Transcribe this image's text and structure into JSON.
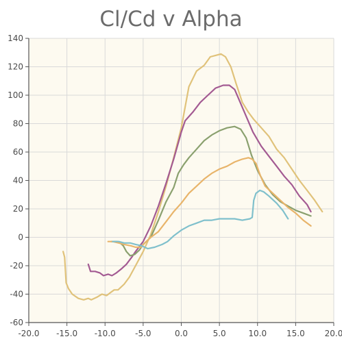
{
  "chart_data": {
    "type": "line",
    "title": "Cl/Cd v Alpha",
    "xlabel": "",
    "ylabel": "",
    "xlim": [
      -20,
      20
    ],
    "ylim": [
      -60,
      140
    ],
    "x_ticks": [
      "-20.0",
      "-15.0",
      "-10.0",
      "-5.0",
      "0.0",
      "5.0",
      "10.0",
      "15.0",
      "20.0"
    ],
    "y_ticks": [
      "140",
      "120",
      "100",
      "80",
      "60",
      "40",
      "20",
      "0",
      "-20",
      "-40",
      "-60"
    ],
    "grid": true,
    "legend": "none",
    "colors": {
      "plot_background": "#fdfaf0",
      "grid": "#d9d9d9",
      "axis": "#555555",
      "title": "#6b6b6b"
    },
    "series": [
      {
        "color": "#e0c27a",
        "points": [
          [
            -15.5,
            -10
          ],
          [
            -15.3,
            -14
          ],
          [
            -15.1,
            -32
          ],
          [
            -14.8,
            -36
          ],
          [
            -14.3,
            -40
          ],
          [
            -13.5,
            -43
          ],
          [
            -12.8,
            -44
          ],
          [
            -12.2,
            -43
          ],
          [
            -11.8,
            -44
          ],
          [
            -11.0,
            -42
          ],
          [
            -10.4,
            -40
          ],
          [
            -9.8,
            -41
          ],
          [
            -9.3,
            -39
          ],
          [
            -8.8,
            -37
          ],
          [
            -8.3,
            -37
          ],
          [
            -7.5,
            -33
          ],
          [
            -6.8,
            -28
          ],
          [
            -6.0,
            -20
          ],
          [
            -5.0,
            -10
          ],
          [
            -4.0,
            2
          ],
          [
            -3.0,
            18
          ],
          [
            -2.0,
            36
          ],
          [
            -1.0,
            56
          ],
          [
            0.0,
            77
          ],
          [
            1.0,
            106
          ],
          [
            2.0,
            117
          ],
          [
            3.0,
            121
          ],
          [
            3.8,
            127
          ],
          [
            4.5,
            128
          ],
          [
            5.2,
            129
          ],
          [
            5.8,
            127
          ],
          [
            6.5,
            120
          ],
          [
            7.2,
            108
          ],
          [
            8.0,
            95
          ],
          [
            8.8,
            88
          ],
          [
            9.5,
            83
          ],
          [
            10.5,
            77
          ],
          [
            11.5,
            71
          ],
          [
            12.5,
            62
          ],
          [
            13.5,
            56
          ],
          [
            14.5,
            48
          ],
          [
            15.5,
            40
          ],
          [
            16.5,
            33
          ],
          [
            17.5,
            26
          ],
          [
            18.5,
            18
          ]
        ]
      },
      {
        "color": "#a35a92",
        "points": [
          [
            -12.2,
            -19
          ],
          [
            -11.9,
            -24
          ],
          [
            -11.3,
            -24
          ],
          [
            -10.7,
            -25
          ],
          [
            -10.2,
            -27
          ],
          [
            -9.6,
            -26
          ],
          [
            -9.1,
            -27
          ],
          [
            -8.5,
            -25
          ],
          [
            -7.8,
            -22
          ],
          [
            -7.2,
            -19
          ],
          [
            -6.5,
            -14
          ],
          [
            -6.0,
            -10
          ],
          [
            -5.0,
            -3
          ],
          [
            -4.0,
            8
          ],
          [
            -3.0,
            22
          ],
          [
            -2.0,
            38
          ],
          [
            -1.0,
            55
          ],
          [
            0.0,
            74
          ],
          [
            0.5,
            82
          ],
          [
            1.5,
            88
          ],
          [
            2.5,
            95
          ],
          [
            3.5,
            100
          ],
          [
            4.5,
            105
          ],
          [
            5.5,
            107
          ],
          [
            6.3,
            107
          ],
          [
            7.0,
            104
          ],
          [
            7.8,
            94
          ],
          [
            8.6,
            84
          ],
          [
            9.4,
            74
          ],
          [
            10.5,
            64
          ],
          [
            11.5,
            57
          ],
          [
            12.5,
            50
          ],
          [
            13.5,
            43
          ],
          [
            14.5,
            37
          ],
          [
            15.5,
            29
          ],
          [
            16.5,
            23
          ],
          [
            17.0,
            18
          ]
        ]
      },
      {
        "color": "#8aa06e",
        "points": [
          [
            -9.2,
            -3
          ],
          [
            -8.8,
            -3
          ],
          [
            -8.4,
            -3
          ],
          [
            -8.0,
            -4
          ],
          [
            -7.6,
            -6
          ],
          [
            -7.2,
            -10
          ],
          [
            -6.7,
            -13
          ],
          [
            -6.1,
            -12
          ],
          [
            -5.5,
            -9
          ],
          [
            -5.0,
            -5
          ],
          [
            -4.0,
            0
          ],
          [
            -3.0,
            12
          ],
          [
            -2.0,
            25
          ],
          [
            -1.0,
            35
          ],
          [
            -0.4,
            45
          ],
          [
            0.3,
            51
          ],
          [
            1.0,
            56
          ],
          [
            2.0,
            62
          ],
          [
            3.0,
            68
          ],
          [
            4.0,
            72
          ],
          [
            5.0,
            75
          ],
          [
            6.0,
            77
          ],
          [
            7.0,
            78
          ],
          [
            7.8,
            76
          ],
          [
            8.5,
            70
          ],
          [
            9.2,
            58
          ],
          [
            10.0,
            47
          ],
          [
            11.0,
            37
          ],
          [
            12.0,
            30
          ],
          [
            13.0,
            25
          ],
          [
            14.0,
            22
          ],
          [
            15.0,
            19
          ],
          [
            16.0,
            17
          ],
          [
            17.0,
            15
          ]
        ]
      },
      {
        "color": "#e8b46a",
        "points": [
          [
            -9.6,
            -3
          ],
          [
            -9.0,
            -3
          ],
          [
            -8.2,
            -4
          ],
          [
            -7.5,
            -5
          ],
          [
            -6.6,
            -6
          ],
          [
            -6.0,
            -7
          ],
          [
            -5.3,
            -7
          ],
          [
            -4.6,
            -3
          ],
          [
            -4.0,
            0
          ],
          [
            -3.0,
            4
          ],
          [
            -2.0,
            11
          ],
          [
            -1.0,
            18
          ],
          [
            0.0,
            24
          ],
          [
            1.0,
            31
          ],
          [
            2.0,
            36
          ],
          [
            3.0,
            41
          ],
          [
            4.0,
            45
          ],
          [
            5.0,
            48
          ],
          [
            6.0,
            50
          ],
          [
            7.0,
            53
          ],
          [
            8.0,
            55
          ],
          [
            8.8,
            56
          ],
          [
            9.3,
            55
          ],
          [
            9.8,
            52
          ],
          [
            10.4,
            43
          ],
          [
            11.0,
            36
          ],
          [
            12.0,
            31
          ],
          [
            13.0,
            26
          ],
          [
            14.0,
            21
          ],
          [
            15.0,
            17
          ],
          [
            16.0,
            12
          ],
          [
            17.0,
            8
          ]
        ]
      },
      {
        "color": "#7fc0cc",
        "points": [
          [
            -9.0,
            -3
          ],
          [
            -8.2,
            -3
          ],
          [
            -7.5,
            -4
          ],
          [
            -6.7,
            -4
          ],
          [
            -6.0,
            -5
          ],
          [
            -5.2,
            -6
          ],
          [
            -4.4,
            -8
          ],
          [
            -3.5,
            -7
          ],
          [
            -2.5,
            -5
          ],
          [
            -1.8,
            -3
          ],
          [
            -1.0,
            1
          ],
          [
            0.0,
            5
          ],
          [
            1.0,
            8
          ],
          [
            2.0,
            10
          ],
          [
            3.0,
            12
          ],
          [
            4.0,
            12
          ],
          [
            5.0,
            13
          ],
          [
            6.0,
            13
          ],
          [
            7.0,
            13
          ],
          [
            8.0,
            12
          ],
          [
            9.0,
            13
          ],
          [
            9.3,
            14
          ],
          [
            9.5,
            26
          ],
          [
            9.8,
            31
          ],
          [
            10.3,
            33
          ],
          [
            10.8,
            32
          ],
          [
            11.5,
            29
          ],
          [
            12.5,
            24
          ],
          [
            13.3,
            19
          ],
          [
            14.0,
            13
          ]
        ]
      }
    ]
  }
}
